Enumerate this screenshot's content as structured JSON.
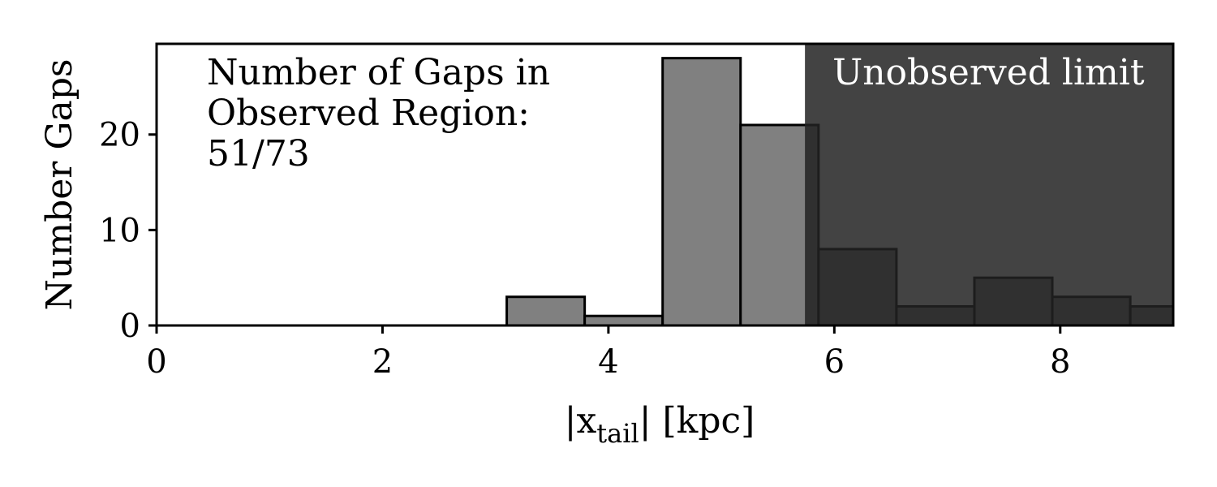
{
  "chart_data": {
    "type": "bar",
    "title": "",
    "xlabel_prefix": "|x",
    "xlabel_sub": "tail",
    "xlabel_suffix": "| [kpc]",
    "ylabel": "Number Gaps",
    "xlim": [
      0,
      9.0
    ],
    "ylim": [
      0,
      29.5
    ],
    "xticks": [
      0,
      2,
      4,
      6,
      8
    ],
    "yticks": [
      0,
      10,
      20
    ],
    "bin_width": 0.69,
    "bins": [
      {
        "x0": 3.1,
        "value": 3
      },
      {
        "x0": 3.79,
        "value": 1
      },
      {
        "x0": 4.48,
        "value": 28
      },
      {
        "x0": 5.17,
        "value": 21
      },
      {
        "x0": 5.86,
        "value": 8
      },
      {
        "x0": 6.55,
        "value": 2
      },
      {
        "x0": 7.24,
        "value": 5
      },
      {
        "x0": 7.93,
        "value": 3
      },
      {
        "x0": 8.62,
        "value": 2
      }
    ],
    "unobserved_limit_x": 5.74,
    "unobserved_label": "Unobserved limit",
    "annotation_lines": [
      "Number of Gaps in",
      "Observed Region:",
      "51/73"
    ],
    "observed_count": 51,
    "total_count": 73,
    "colors": {
      "bar_fill": "#808080",
      "bar_edge": "#000000",
      "unobserved_region": "#222222",
      "unobserved_opacity": 0.85,
      "limit_text": "#ffffff"
    }
  }
}
